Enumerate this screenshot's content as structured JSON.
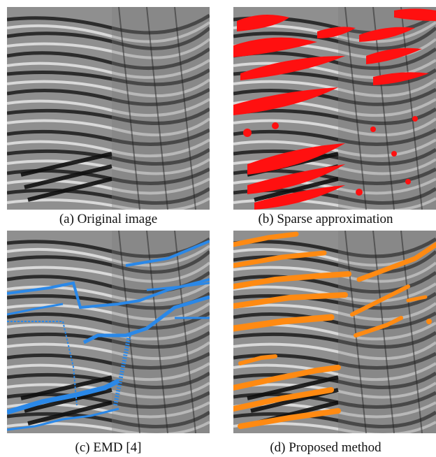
{
  "panels": [
    {
      "caption": "(a) Original image",
      "overlay": "none"
    },
    {
      "caption": "(b) Sparse approximation",
      "overlay": "red-blobs"
    },
    {
      "caption": "(c) EMD [4]",
      "overlay": "blue-lines"
    },
    {
      "caption": "(d) Proposed method",
      "overlay": "orange-strokes"
    }
  ],
  "colors": {
    "red": "#ff1010",
    "blue": "#2a88e8",
    "orange": "#ff8a12",
    "seismic_dark": "#0f0f0f",
    "seismic_light": "#efefef",
    "seismic_mid": "#8a8a8a"
  }
}
